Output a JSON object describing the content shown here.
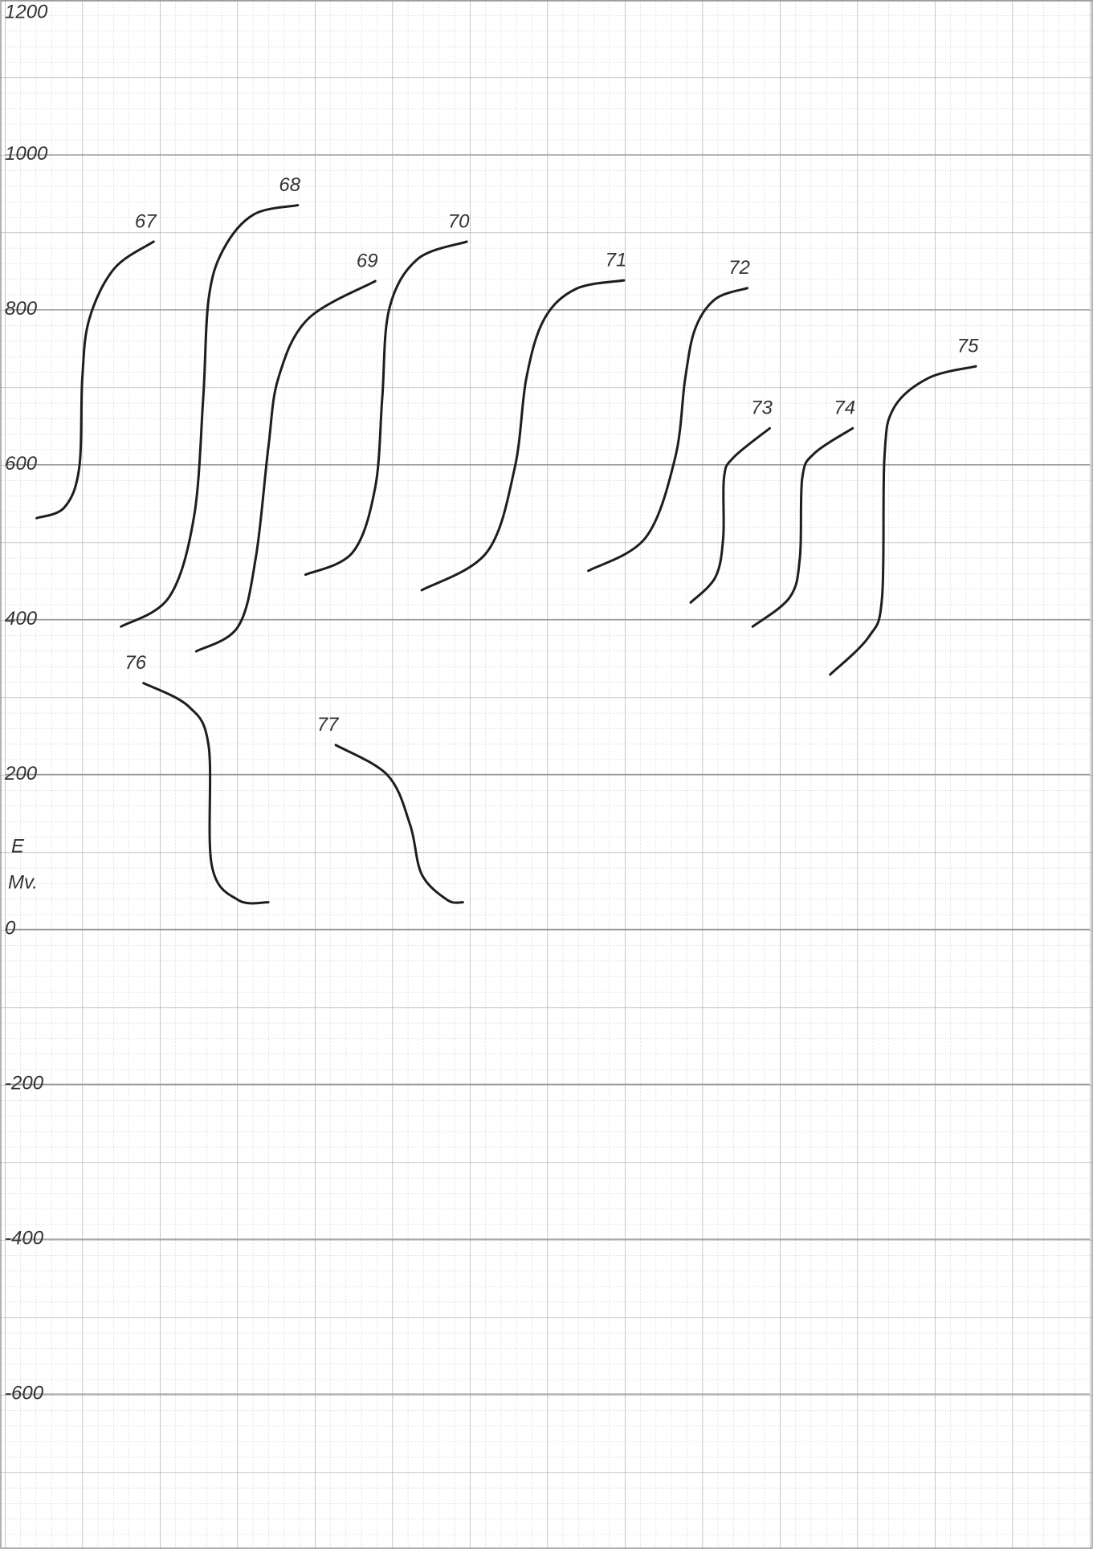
{
  "chart_data": {
    "type": "line",
    "ylabel": "E",
    "yunit": "Mv.",
    "ylim": [
      -800,
      1200
    ],
    "yticks": [
      1200,
      1000,
      800,
      600,
      400,
      200,
      0,
      -200,
      -400,
      -600
    ],
    "xlim": [
      0,
      14
    ],
    "grid": true,
    "color": "#1e1e1e",
    "series": [
      {
        "name": "67",
        "x": [
          0.41,
          0.77,
          0.96,
          1.0,
          1.09,
          1.41,
          1.92
        ],
        "values": [
          531,
          545,
          596,
          712,
          788,
          853,
          888
        ]
      },
      {
        "name": "68",
        "x": [
          1.5,
          2.12,
          2.44,
          2.56,
          2.63,
          2.82,
          3.21,
          3.78
        ],
        "values": [
          391,
          429,
          532,
          686,
          814,
          878,
          923,
          935
        ]
      },
      {
        "name": "69",
        "x": [
          2.47,
          3.01,
          3.24,
          3.4,
          3.53,
          3.91,
          4.78
        ],
        "values": [
          359,
          391,
          481,
          622,
          712,
          788,
          837
        ]
      },
      {
        "name": "70",
        "x": [
          3.88,
          4.49,
          4.78,
          4.87,
          4.96,
          5.32,
          5.96
        ],
        "values": [
          458,
          487,
          571,
          686,
          801,
          865,
          888
        ]
      },
      {
        "name": "71",
        "x": [
          5.38,
          6.22,
          6.58,
          6.73,
          6.96,
          7.37,
          7.99
        ],
        "values": [
          438,
          487,
          596,
          712,
          788,
          827,
          838
        ]
      },
      {
        "name": "72",
        "x": [
          7.53,
          8.27,
          8.65,
          8.78,
          8.91,
          9.17,
          9.58
        ],
        "values": [
          463,
          506,
          609,
          712,
          776,
          814,
          828
        ]
      },
      {
        "name": "73",
        "x": [
          8.85,
          9.17,
          9.27,
          9.28,
          9.4,
          9.87
        ],
        "values": [
          422,
          455,
          506,
          583,
          609,
          647
        ]
      },
      {
        "name": "74",
        "x": [
          9.65,
          10.13,
          10.26,
          10.29,
          10.45,
          10.94
        ],
        "values": [
          391,
          429,
          481,
          583,
          615,
          647
        ]
      },
      {
        "name": "75",
        "x": [
          10.65,
          11.15,
          11.32,
          11.35,
          11.47,
          11.92,
          12.53
        ],
        "values": [
          329,
          378,
          429,
          609,
          673,
          712,
          727
        ]
      },
      {
        "name": "76",
        "x": [
          1.79,
          2.37,
          2.63,
          2.67,
          3.01,
          3.4
        ],
        "values": [
          318,
          288,
          237,
          83,
          38,
          35
        ]
      },
      {
        "name": "77",
        "x": [
          4.27,
          4.94,
          5.23,
          5.38,
          5.71,
          5.91
        ],
        "values": [
          238,
          199,
          135,
          71,
          38,
          35
        ]
      }
    ]
  }
}
